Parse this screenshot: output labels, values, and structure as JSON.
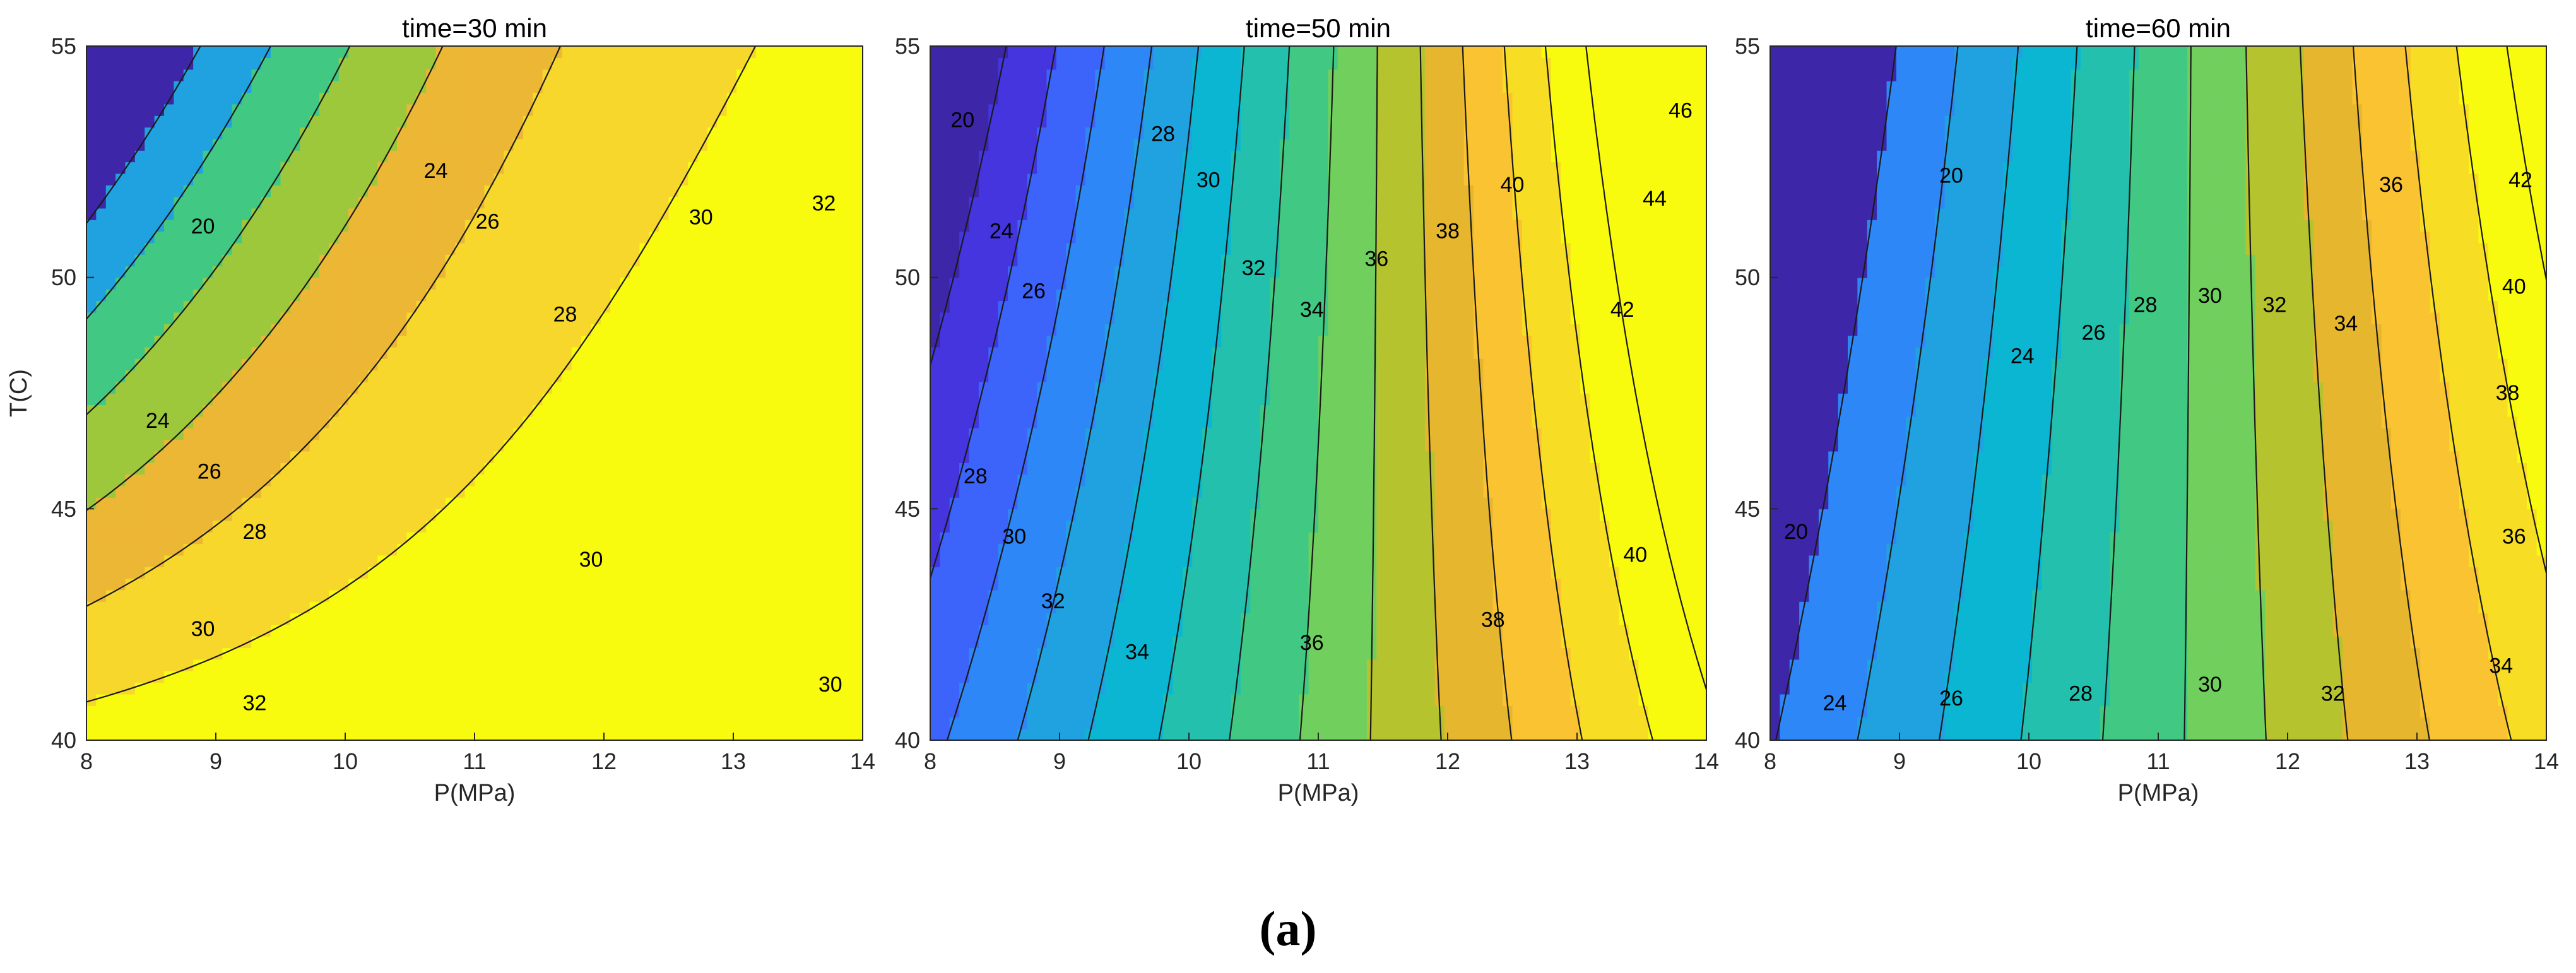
{
  "caption": "(a)",
  "palette": [
    "#3e26a8",
    "#4435de",
    "#3d64fa",
    "#2e87f7",
    "#21a2e0",
    "#0bb6d2",
    "#22c0ad",
    "#41c983",
    "#71cf5e",
    "#b5c32f",
    "#e6b72e",
    "#f9c332",
    "#f7dd23",
    "#f9fb0e"
  ],
  "chart_data": [
    {
      "type": "contour",
      "title": "time=30 min",
      "xlabel": "P(MPa)",
      "ylabel": "T(C)",
      "xlim": [
        8,
        14
      ],
      "ylim": [
        40,
        55
      ],
      "xticks": [
        "8",
        "9",
        "10",
        "11",
        "12",
        "13",
        "14"
      ],
      "yticks": [
        "40",
        "45",
        "50",
        "55"
      ],
      "levels": [
        20,
        22,
        24,
        26,
        28,
        30,
        32,
        34
      ],
      "level_colors": [
        "#3e26a8",
        "#21a2e0",
        "#41c983",
        "#9dc83c",
        "#ecb734",
        "#f7d72b",
        "#f9fb0e"
      ],
      "contour_labels": [
        {
          "text": "20",
          "x": 8.9,
          "y": 51.1
        },
        {
          "text": "24",
          "x": 10.7,
          "y": 52.3
        },
        {
          "text": "26",
          "x": 11.1,
          "y": 51.2
        },
        {
          "text": "28",
          "x": 11.7,
          "y": 49.2
        },
        {
          "text": "30",
          "x": 12.75,
          "y": 51.3
        },
        {
          "text": "32",
          "x": 13.7,
          "y": 51.6
        },
        {
          "text": "24",
          "x": 8.55,
          "y": 46.9
        },
        {
          "text": "26",
          "x": 8.95,
          "y": 45.8
        },
        {
          "text": "28",
          "x": 9.3,
          "y": 44.5
        },
        {
          "text": "30",
          "x": 11.9,
          "y": 43.9
        },
        {
          "text": "30",
          "x": 8.9,
          "y": 42.4
        },
        {
          "text": "32",
          "x": 9.3,
          "y": 40.8
        },
        {
          "text": "30",
          "x": 13.75,
          "y": 41.2
        }
      ]
    },
    {
      "type": "contour",
      "title": "time=50 min",
      "xlabel": "P(MPa)",
      "ylabel": "",
      "xlim": [
        8,
        14
      ],
      "ylim": [
        40,
        55
      ],
      "xticks": [
        "8",
        "9",
        "10",
        "11",
        "12",
        "13",
        "14"
      ],
      "yticks": [
        "40",
        "45",
        "50",
        "55"
      ],
      "levels": [
        18,
        20,
        22,
        24,
        26,
        28,
        30,
        32,
        34,
        36,
        38,
        40,
        42,
        44,
        46,
        48
      ],
      "level_colors": [
        "#3e26a8",
        "#4435de",
        "#3d64fa",
        "#2e87f7",
        "#21a2e0",
        "#0bb6d2",
        "#22c0ad",
        "#41c983",
        "#71cf5e",
        "#b5c32f",
        "#e6b72e",
        "#f9c332",
        "#f7dd23",
        "#f9fb0e"
      ],
      "contour_labels": [
        {
          "text": "20",
          "x": 8.25,
          "y": 53.4
        },
        {
          "text": "24",
          "x": 8.55,
          "y": 51.0
        },
        {
          "text": "26",
          "x": 8.8,
          "y": 49.7
        },
        {
          "text": "28",
          "x": 9.8,
          "y": 53.1
        },
        {
          "text": "30",
          "x": 10.15,
          "y": 52.1
        },
        {
          "text": "32",
          "x": 10.5,
          "y": 50.2
        },
        {
          "text": "34",
          "x": 10.95,
          "y": 49.3
        },
        {
          "text": "36",
          "x": 11.45,
          "y": 50.4
        },
        {
          "text": "38",
          "x": 12.0,
          "y": 51.0
        },
        {
          "text": "40",
          "x": 12.5,
          "y": 52.0
        },
        {
          "text": "42",
          "x": 13.35,
          "y": 49.3
        },
        {
          "text": "44",
          "x": 13.6,
          "y": 51.7
        },
        {
          "text": "46",
          "x": 13.8,
          "y": 53.6
        },
        {
          "text": "28",
          "x": 8.35,
          "y": 45.7
        },
        {
          "text": "30",
          "x": 8.65,
          "y": 44.4
        },
        {
          "text": "32",
          "x": 8.95,
          "y": 43.0
        },
        {
          "text": "34",
          "x": 9.6,
          "y": 41.9
        },
        {
          "text": "36",
          "x": 10.95,
          "y": 42.1
        },
        {
          "text": "38",
          "x": 12.35,
          "y": 42.6
        },
        {
          "text": "40",
          "x": 13.45,
          "y": 44.0
        }
      ]
    },
    {
      "type": "contour",
      "title": "time=60 min",
      "xlabel": "P(MPa)",
      "ylabel": "",
      "xlim": [
        8,
        14
      ],
      "ylim": [
        40,
        55
      ],
      "xticks": [
        "8",
        "9",
        "10",
        "11",
        "12",
        "13",
        "14"
      ],
      "yticks": [
        "40",
        "45",
        "50",
        "55"
      ],
      "levels": [
        18,
        20,
        22,
        24,
        26,
        28,
        30,
        32,
        34,
        36,
        38,
        40,
        42,
        44
      ],
      "level_colors": [
        "#3e26a8",
        "#2e87f7",
        "#21a2e0",
        "#0bb6d2",
        "#22c0ad",
        "#41c983",
        "#71cf5e",
        "#b5c32f",
        "#e6b72e",
        "#f9c332",
        "#f7dd23",
        "#f9fb0e"
      ],
      "contour_labels": [
        {
          "text": "20",
          "x": 9.4,
          "y": 52.2
        },
        {
          "text": "24",
          "x": 9.95,
          "y": 48.3
        },
        {
          "text": "26",
          "x": 10.5,
          "y": 48.8
        },
        {
          "text": "28",
          "x": 10.9,
          "y": 49.4
        },
        {
          "text": "30",
          "x": 11.4,
          "y": 49.6
        },
        {
          "text": "32",
          "x": 11.9,
          "y": 49.4
        },
        {
          "text": "34",
          "x": 12.45,
          "y": 49.0
        },
        {
          "text": "36",
          "x": 12.8,
          "y": 52.0
        },
        {
          "text": "38",
          "x": 13.7,
          "y": 47.5
        },
        {
          "text": "40",
          "x": 13.75,
          "y": 49.8
        },
        {
          "text": "42",
          "x": 13.8,
          "y": 52.1
        },
        {
          "text": "20",
          "x": 8.2,
          "y": 44.5
        },
        {
          "text": "24",
          "x": 8.5,
          "y": 40.8
        },
        {
          "text": "26",
          "x": 9.4,
          "y": 40.9
        },
        {
          "text": "28",
          "x": 10.4,
          "y": 41.0
        },
        {
          "text": "30",
          "x": 11.4,
          "y": 41.2
        },
        {
          "text": "32",
          "x": 12.35,
          "y": 41.0
        },
        {
          "text": "34",
          "x": 13.65,
          "y": 41.6
        },
        {
          "text": "36",
          "x": 13.75,
          "y": 44.4
        }
      ]
    }
  ]
}
